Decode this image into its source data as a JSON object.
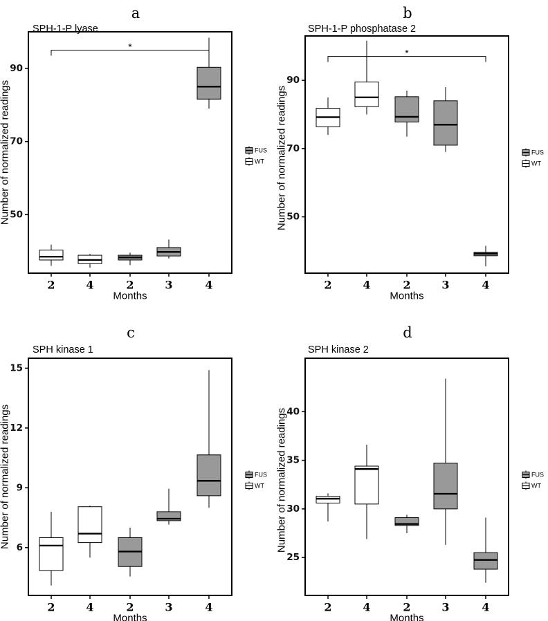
{
  "colors": {
    "FUS": "#999999",
    "WT": "#ffffff",
    "line": "#000000"
  },
  "chart_data": [
    {
      "type": "box",
      "panel": "a",
      "title": "SPH-1-P lyase",
      "xlabel": "Months",
      "ylabel": "Number of normalized readings",
      "categories": [
        "2",
        "4",
        "2",
        "3",
        "4"
      ],
      "ylim": [
        34,
        100
      ],
      "yticks": [
        50,
        70,
        90
      ],
      "legend": [
        "FUS",
        "WT"
      ],
      "boxes": [
        {
          "x": "2",
          "group": "WT",
          "min": 36.0,
          "q1": 37.6,
          "median": 38.5,
          "q3": 40.3,
          "max": 41.8
        },
        {
          "x": "4",
          "group": "WT",
          "min": 35.5,
          "q1": 36.6,
          "median": 37.6,
          "q3": 38.9,
          "max": 39.3
        },
        {
          "x": "2",
          "group": "FUS",
          "min": 36.2,
          "q1": 37.6,
          "median": 38.3,
          "q3": 38.9,
          "max": 39.6
        },
        {
          "x": "3",
          "group": "FUS",
          "min": 38.0,
          "q1": 38.7,
          "median": 39.8,
          "q3": 41.0,
          "max": 43.2
        },
        {
          "x": "4",
          "group": "FUS",
          "min": 79.0,
          "q1": 81.6,
          "median": 85.0,
          "q3": 90.3,
          "max": 98.4
        }
      ],
      "significance": {
        "from": 0,
        "to": 4,
        "label": "*",
        "y": 95
      }
    },
    {
      "type": "box",
      "panel": "b",
      "title": "SPH-1-P phosphatase 2",
      "xlabel": "Months",
      "ylabel": "Number of normalized readings",
      "categories": [
        "2",
        "4",
        "2",
        "3",
        "4"
      ],
      "ylim": [
        33.5,
        103
      ],
      "yticks": [
        50,
        70,
        90
      ],
      "legend": [
        "FUS",
        "WT"
      ],
      "boxes": [
        {
          "x": "2",
          "group": "WT",
          "min": 74.0,
          "q1": 76.4,
          "median": 79.2,
          "q3": 81.8,
          "max": 85.0
        },
        {
          "x": "4",
          "group": "WT",
          "min": 80.0,
          "q1": 82.3,
          "median": 85.0,
          "q3": 89.5,
          "max": 101.6
        },
        {
          "x": "2",
          "group": "FUS",
          "min": 73.5,
          "q1": 77.8,
          "median": 79.3,
          "q3": 85.2,
          "max": 87.0
        },
        {
          "x": "3",
          "group": "FUS",
          "min": 69.0,
          "q1": 71.0,
          "median": 77.0,
          "q3": 84.0,
          "max": 88.0
        },
        {
          "x": "4",
          "group": "FUS",
          "min": 35.5,
          "q1": 38.6,
          "median": 39.2,
          "q3": 39.6,
          "max": 41.5
        }
      ],
      "significance": {
        "from": 0,
        "to": 4,
        "label": "*",
        "y": 97
      }
    },
    {
      "type": "box",
      "panel": "c",
      "title": "SPH kinase 1",
      "xlabel": "Months",
      "ylabel": "Number of normalized readings",
      "categories": [
        "2",
        "4",
        "2",
        "3",
        "4"
      ],
      "ylim": [
        3.6,
        15.5
      ],
      "yticks": [
        6,
        9,
        12,
        15
      ],
      "ytick_labels": [
        "6",
        "9",
        "12",
        "15"
      ],
      "legend": [
        "FUS",
        "WT"
      ],
      "boxes": [
        {
          "x": "2",
          "group": "WT",
          "min": 4.1,
          "q1": 4.85,
          "median": 6.1,
          "q3": 6.5,
          "max": 7.8
        },
        {
          "x": "4",
          "group": "WT",
          "min": 5.5,
          "q1": 6.25,
          "median": 6.7,
          "q3": 8.05,
          "max": 8.1
        },
        {
          "x": "2",
          "group": "FUS",
          "min": 4.55,
          "q1": 5.05,
          "median": 5.8,
          "q3": 6.5,
          "max": 7.0
        },
        {
          "x": "3",
          "group": "FUS",
          "min": 7.15,
          "q1": 7.35,
          "median": 7.45,
          "q3": 7.8,
          "max": 8.95
        },
        {
          "x": "4",
          "group": "FUS",
          "min": 8.0,
          "q1": 8.6,
          "median": 9.35,
          "q3": 10.65,
          "max": 14.9
        }
      ]
    },
    {
      "type": "box",
      "panel": "d",
      "title": "SPH kinase 2",
      "xlabel": "Months",
      "ylabel": "Number of normalized readings",
      "categories": [
        "2",
        "4",
        "2",
        "3",
        "4"
      ],
      "ylim": [
        21.1,
        45.5
      ],
      "yticks": [
        25,
        30,
        35,
        40
      ],
      "legend": [
        "FUS",
        "WT"
      ],
      "boxes": [
        {
          "x": "2",
          "group": "WT",
          "min": 28.7,
          "q1": 30.6,
          "median": 31.05,
          "q3": 31.3,
          "max": 31.6
        },
        {
          "x": "4",
          "group": "WT",
          "min": 26.9,
          "q1": 30.5,
          "median": 34.1,
          "q3": 34.4,
          "max": 36.6
        },
        {
          "x": "2",
          "group": "FUS",
          "min": 27.5,
          "q1": 28.3,
          "median": 28.45,
          "q3": 29.1,
          "max": 29.4
        },
        {
          "x": "3",
          "group": "FUS",
          "min": 26.3,
          "q1": 30.0,
          "median": 31.55,
          "q3": 34.7,
          "max": 43.4
        },
        {
          "x": "4",
          "group": "FUS",
          "min": 22.4,
          "q1": 23.8,
          "median": 24.75,
          "q3": 25.5,
          "max": 29.1
        }
      ]
    }
  ]
}
